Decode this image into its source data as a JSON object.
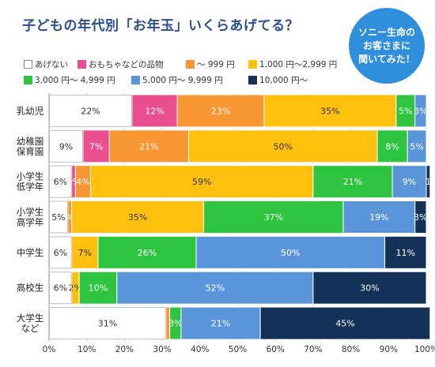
{
  "title": "子どもの年代別「お年玉」いくらあげてる？",
  "badge": {
    "line1": "ソニー生命の",
    "line2": "お客さまに",
    "line3": "聞いてみた！"
  },
  "legend": [
    {
      "label": "あげない",
      "color": "#ffffff"
    },
    {
      "label": "おもちゃなどの品物",
      "color": "#ea4f8f"
    },
    {
      "label": "～ 999 円",
      "color": "#f79632"
    },
    {
      "label": "1,000 円～2,999 円",
      "color": "#ffc10e"
    },
    {
      "label": "3,000 円～ 4,999 円",
      "color": "#2ec43f"
    },
    {
      "label": "5,000 円～ 9,999 円",
      "color": "#5b95d9"
    },
    {
      "label": "10,000 円～",
      "color": "#143258"
    }
  ],
  "chart_data": {
    "type": "bar",
    "orientation": "horizontal",
    "stacked": true,
    "title": "子どもの年代別「お年玉」いくらあげてる？",
    "xlim": [
      0,
      100
    ],
    "x_ticks": [
      "0%",
      "10%",
      "20%",
      "30%",
      "40%",
      "50%",
      "60%",
      "70%",
      "80%",
      "90%",
      "100%"
    ],
    "grid": true,
    "categories": [
      [
        "乳幼児"
      ],
      [
        "幼稚園",
        "保育園"
      ],
      [
        "小学生",
        "低学年"
      ],
      [
        "小学生",
        "高学年"
      ],
      [
        "中学生"
      ],
      [
        "高校生"
      ],
      [
        "大学生",
        "など"
      ]
    ],
    "series": [
      {
        "name": "あげない",
        "color": "#ffffff",
        "values": [
          22,
          9,
          6,
          5,
          6,
          6,
          31
        ]
      },
      {
        "name": "おもちゃなどの品物",
        "color": "#ea4f8f",
        "values": [
          12,
          7,
          1,
          0,
          0,
          0,
          0
        ]
      },
      {
        "name": "～ 999 円",
        "color": "#f79632",
        "values": [
          23,
          21,
          4,
          1,
          0,
          0,
          1
        ]
      },
      {
        "name": "1,000 円～2,999 円",
        "color": "#ffc10e",
        "values": [
          35,
          50,
          59,
          35,
          7,
          2,
          0
        ]
      },
      {
        "name": "3,000 円～ 4,999 円",
        "color": "#2ec43f",
        "values": [
          5,
          8,
          21,
          37,
          26,
          10,
          3
        ]
      },
      {
        "name": "5,000 円～ 9,999 円",
        "color": "#5b95d9",
        "values": [
          3,
          5,
          9,
          19,
          50,
          52,
          21
        ]
      },
      {
        "name": "10,000 円～",
        "color": "#143258",
        "values": [
          0,
          0,
          1,
          3,
          11,
          30,
          45
        ]
      }
    ],
    "data_labels": [
      [
        "22%",
        "12%",
        "23%",
        "35%",
        "5%",
        "3%",
        ""
      ],
      [
        "9%",
        "7%",
        "21%",
        "50%",
        "8%",
        "5%",
        ""
      ],
      [
        "6%",
        "1%",
        "4%",
        "59%",
        "21%",
        "9%",
        "1"
      ],
      [
        "5%",
        "",
        "%",
        "35%",
        "37%",
        "19%",
        "3%"
      ],
      [
        "6%",
        "",
        "",
        "7%",
        "26%",
        "50%",
        "11%"
      ],
      [
        "6%",
        "",
        "",
        "2%",
        "10%",
        "52%",
        "30%"
      ],
      [
        "31%",
        "",
        "",
        "",
        "3%",
        "21%",
        "45%"
      ]
    ]
  }
}
